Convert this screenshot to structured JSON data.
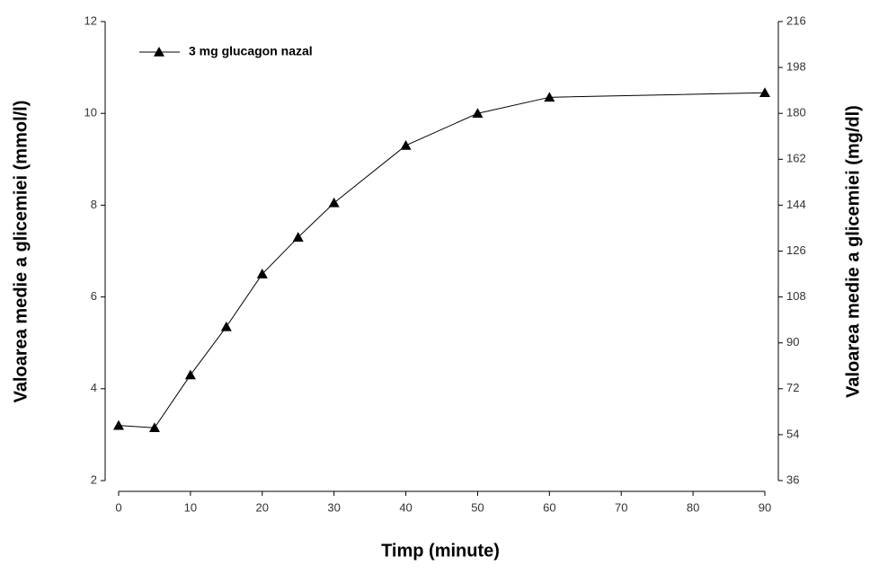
{
  "chart_data": {
    "type": "line",
    "x_label": "Timp (minute)",
    "y_label": "Valoarea medie a glicemiei (mmol/l)",
    "y2_label": "Valoarea medie a glicemiei (mg/dl)",
    "x": [
      0,
      5,
      10,
      15,
      20,
      25,
      30,
      40,
      50,
      60,
      90
    ],
    "series": [
      {
        "name": "3 mg glucagon nazal",
        "color": "#000000",
        "marker": "triangle",
        "values": [
          3.2,
          3.15,
          4.3,
          5.35,
          6.5,
          7.3,
          8.05,
          9.3,
          10.0,
          10.35,
          10.45
        ]
      }
    ],
    "xlim": [
      0,
      90
    ],
    "xticks": [
      0,
      10,
      20,
      30,
      40,
      50,
      60,
      70,
      80,
      90
    ],
    "ylim": [
      2,
      12
    ],
    "yticks": [
      2,
      4,
      6,
      8,
      10,
      12
    ],
    "y2lim": [
      36,
      216
    ],
    "y2ticks": [
      36,
      54,
      72,
      90,
      108,
      126,
      144,
      162,
      180,
      198,
      216
    ]
  }
}
